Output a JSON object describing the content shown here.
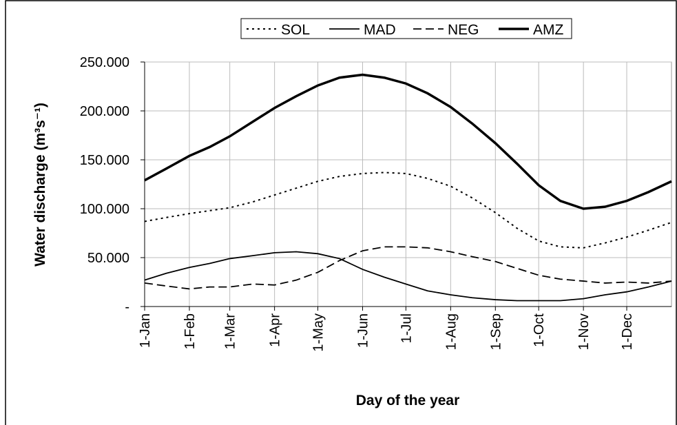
{
  "chart_data": {
    "type": "line",
    "xlabel": "Day of the year",
    "ylabel": "Water discharge (m³s⁻¹)",
    "x": [
      0,
      15,
      31,
      45,
      59,
      75,
      90,
      105,
      120,
      135,
      151,
      166,
      181,
      196,
      212,
      227,
      243,
      258,
      273,
      288,
      304,
      319,
      334,
      349,
      365
    ],
    "xlim": [
      0,
      365
    ],
    "xticks": [
      {
        "value": 0,
        "label": "1-Jan"
      },
      {
        "value": 31,
        "label": "1-Feb"
      },
      {
        "value": 59,
        "label": "1-Mar"
      },
      {
        "value": 90,
        "label": "1-Apr"
      },
      {
        "value": 120,
        "label": "1-May"
      },
      {
        "value": 151,
        "label": "1-Jun"
      },
      {
        "value": 181,
        "label": "1-Jul"
      },
      {
        "value": 212,
        "label": "1-Aug"
      },
      {
        "value": 243,
        "label": "1-Sep"
      },
      {
        "value": 273,
        "label": "1-Oct"
      },
      {
        "value": 304,
        "label": "1-Nov"
      },
      {
        "value": 334,
        "label": "1-Dec"
      }
    ],
    "ylim": [
      0,
      250000
    ],
    "yticks": [
      {
        "value": 0,
        "label": "-"
      },
      {
        "value": 50000,
        "label": "50.000"
      },
      {
        "value": 100000,
        "label": "100.000"
      },
      {
        "value": 150000,
        "label": "150.000"
      },
      {
        "value": 200000,
        "label": "200.000"
      },
      {
        "value": 250000,
        "label": "250.000"
      }
    ],
    "grid": true,
    "legend": "top",
    "series": [
      {
        "name": "SOL",
        "color": "#000000",
        "style": "dotted",
        "values": [
          87000,
          91000,
          95000,
          98000,
          101000,
          107000,
          114000,
          121000,
          128000,
          133000,
          136000,
          137000,
          136000,
          131000,
          123000,
          111000,
          96000,
          80000,
          67000,
          61000,
          60000,
          65000,
          71000,
          78000,
          86000
        ]
      },
      {
        "name": "MAD",
        "color": "#000000",
        "style": "solid",
        "values": [
          27000,
          34000,
          40000,
          44000,
          49000,
          52000,
          55000,
          56000,
          54000,
          49000,
          38000,
          30000,
          23000,
          16000,
          12000,
          9000,
          7000,
          6000,
          6000,
          6000,
          8000,
          12000,
          15000,
          20000,
          26000
        ]
      },
      {
        "name": "NEG",
        "color": "#000000",
        "style": "dashed",
        "values": [
          24000,
          21000,
          18000,
          20000,
          20000,
          23000,
          22000,
          27000,
          35000,
          47000,
          57000,
          61000,
          61000,
          60000,
          56000,
          51000,
          46000,
          39000,
          32000,
          28000,
          26000,
          24000,
          25000,
          24000,
          26000
        ]
      },
      {
        "name": "AMZ",
        "color": "#000000",
        "style": "bold",
        "values": [
          129000,
          141000,
          154000,
          163000,
          174000,
          189000,
          203000,
          215000,
          226000,
          234000,
          237000,
          234000,
          228000,
          218000,
          204000,
          187000,
          167000,
          146000,
          124000,
          108000,
          100000,
          102000,
          108000,
          117000,
          128000
        ]
      }
    ]
  }
}
